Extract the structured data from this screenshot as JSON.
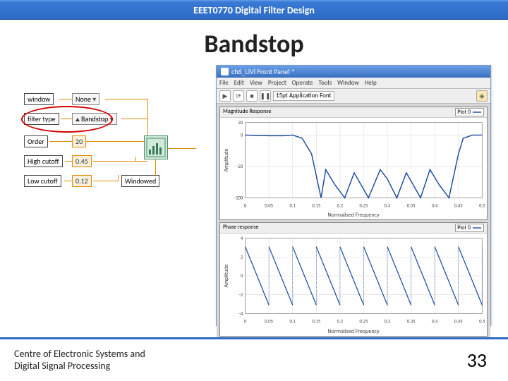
{
  "header": {
    "course": "EEET0770 Digital Filter Design"
  },
  "slide": {
    "title": "Bandstop"
  },
  "diagram": {
    "window_label": "window",
    "window_value": "None",
    "filter_type_label": "filter type",
    "filter_type_value": "Bandstop",
    "order_label": "Order",
    "order_value": "20",
    "high_cutoff_label": "High cutoff",
    "high_cutoff_value": "0.45",
    "low_cutoff_label": "Low cutoff",
    "low_cutoff_value": "0.12",
    "windowed_label": "Windowed",
    "icon_label": "dft"
  },
  "screenshot": {
    "title": "ch6_LiVi Front Panel *",
    "menu": [
      "File",
      "Edit",
      "View",
      "Project",
      "Operate",
      "Tools",
      "Window",
      "Help"
    ],
    "toolbar_field": "15pt Application Font",
    "mag_plot": {
      "title": "Magnitude Response",
      "legend": "Plot 0",
      "xlabel": "Normalised Frequency",
      "ylabel": "Amplitude",
      "ylim": [
        -100,
        20
      ],
      "yticks": [
        20,
        0,
        -50,
        -100
      ],
      "xlim": [
        0,
        0.5
      ],
      "xticks": [
        0,
        0.05,
        0.1,
        0.15,
        0.2,
        0.25,
        0.3,
        0.35,
        0.4,
        0.45,
        0.5
      ],
      "line_color": "#1a4aa0",
      "series": [
        [
          0.0,
          0
        ],
        [
          0.02,
          -0.5
        ],
        [
          0.05,
          -1
        ],
        [
          0.08,
          -1
        ],
        [
          0.1,
          0
        ],
        [
          0.12,
          -5
        ],
        [
          0.14,
          -30
        ],
        [
          0.16,
          -100
        ],
        [
          0.17,
          -55
        ],
        [
          0.19,
          -80
        ],
        [
          0.21,
          -100
        ],
        [
          0.23,
          -60
        ],
        [
          0.26,
          -100
        ],
        [
          0.285,
          -55
        ],
        [
          0.3,
          -70
        ],
        [
          0.32,
          -100
        ],
        [
          0.34,
          -60
        ],
        [
          0.37,
          -100
        ],
        [
          0.39,
          -55
        ],
        [
          0.41,
          -80
        ],
        [
          0.43,
          -100
        ],
        [
          0.45,
          -30
        ],
        [
          0.46,
          -5
        ],
        [
          0.48,
          0
        ],
        [
          0.5,
          0
        ]
      ],
      "grid_color": "#dcdcdc"
    },
    "phase_plot": {
      "title": "Phase response",
      "legend": "Plot 0",
      "xlabel": "Normalised Frequency",
      "ylabel": "Amplitude",
      "ylim": [
        -4,
        4
      ],
      "yticks": [
        4,
        2,
        0,
        -2,
        -4
      ],
      "xlim": [
        0,
        0.5
      ],
      "xticks": [
        0,
        0.05,
        0.1,
        0.15,
        0.2,
        0.25,
        0.3,
        0.35,
        0.4,
        0.45,
        0.5
      ],
      "line_color": "#1a4aa0",
      "grid_color": "#dcdcdc"
    }
  },
  "footer": {
    "line1": "Centre of Electronic Systems and",
    "line2": "Digital Signal Processing",
    "page": "33"
  },
  "colors": {
    "header_bg": "#2e6bc6",
    "wire": "#e28b00",
    "circle": "#d00000",
    "plot_line": "#1a4aa0"
  }
}
